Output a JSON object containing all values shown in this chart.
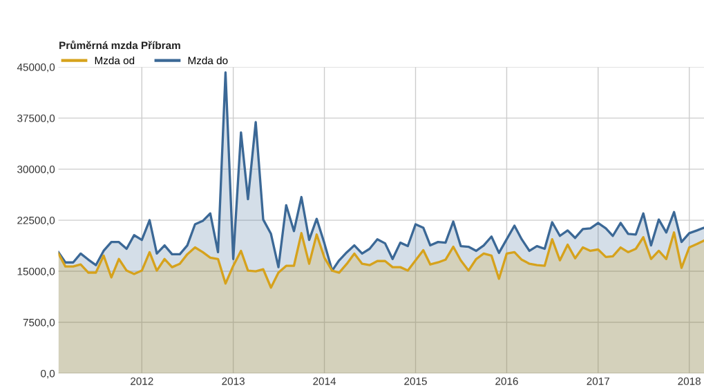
{
  "chart_data": {
    "type": "area",
    "title": "Průměrná mzda Příbram",
    "x": [
      "2011-02",
      "2011-03",
      "2011-04",
      "2011-05",
      "2011-06",
      "2011-07",
      "2011-08",
      "2011-09",
      "2011-10",
      "2011-11",
      "2011-12",
      "2012-01",
      "2012-02",
      "2012-03",
      "2012-04",
      "2012-05",
      "2012-06",
      "2012-07",
      "2012-08",
      "2012-09",
      "2012-10",
      "2012-11",
      "2012-12",
      "2013-01",
      "2013-02",
      "2013-03",
      "2013-04",
      "2013-05",
      "2013-06",
      "2013-07",
      "2013-08",
      "2013-09",
      "2013-10",
      "2013-11",
      "2013-12",
      "2014-01",
      "2014-02",
      "2014-03",
      "2014-04",
      "2014-05",
      "2014-06",
      "2014-07",
      "2014-08",
      "2014-09",
      "2014-10",
      "2014-11",
      "2014-12",
      "2015-01",
      "2015-02",
      "2015-03",
      "2015-04",
      "2015-05",
      "2015-06",
      "2015-07",
      "2015-08",
      "2015-09",
      "2015-10",
      "2015-11",
      "2015-12",
      "2016-01",
      "2016-02",
      "2016-03",
      "2016-04",
      "2016-05",
      "2016-06",
      "2016-07",
      "2016-08",
      "2016-09",
      "2016-10",
      "2016-11",
      "2016-12",
      "2017-01",
      "2017-02",
      "2017-03",
      "2017-04",
      "2017-05",
      "2017-06",
      "2017-07",
      "2017-08",
      "2017-09",
      "2017-10",
      "2017-11",
      "2017-12",
      "2018-01",
      "2018-02",
      "2018-03"
    ],
    "series": [
      {
        "name": "Mzda od",
        "color": "#d6a21c",
        "values": [
          17600,
          15700,
          15700,
          16000,
          14800,
          14800,
          17300,
          14100,
          16800,
          15100,
          14600,
          15100,
          17800,
          15100,
          16800,
          15600,
          16100,
          17500,
          18500,
          17800,
          17000,
          16800,
          13200,
          15800,
          18000,
          15100,
          15000,
          15300,
          12600,
          14800,
          15800,
          15800,
          20600,
          16100,
          20400,
          17000,
          15100,
          14800,
          16100,
          17600,
          16100,
          15900,
          16500,
          16500,
          15600,
          15600,
          15100,
          16600,
          18100,
          16000,
          16300,
          16700,
          18600,
          16600,
          15100,
          16800,
          17600,
          17300,
          13900,
          17600,
          17800,
          16700,
          16100,
          15900,
          15800,
          19700,
          16600,
          18900,
          16900,
          18500,
          18000,
          18200,
          17100,
          17200,
          18500,
          17800,
          18300,
          20000,
          16800,
          18000,
          16800,
          20700,
          15500,
          18500,
          19000,
          19500
        ]
      },
      {
        "name": "Mzda do",
        "color": "#3b6896",
        "values": [
          17800,
          16300,
          16300,
          17600,
          16700,
          15900,
          18000,
          19300,
          19300,
          18300,
          20300,
          19600,
          22500,
          17600,
          18800,
          17500,
          17500,
          18800,
          21900,
          22400,
          23500,
          17800,
          44200,
          16800,
          35400,
          25600,
          36900,
          22600,
          20500,
          15600,
          24700,
          20900,
          25900,
          19600,
          22700,
          19100,
          15100,
          16600,
          17800,
          18800,
          17600,
          18300,
          19700,
          19100,
          16800,
          19200,
          18700,
          21900,
          21400,
          18800,
          19300,
          19200,
          22300,
          18700,
          18600,
          18000,
          18800,
          20100,
          17700,
          19700,
          21700,
          19700,
          18000,
          18700,
          18300,
          22200,
          20200,
          21000,
          19900,
          21200,
          21300,
          22100,
          21300,
          20200,
          22100,
          20500,
          20400,
          23500,
          18800,
          22600,
          20700,
          23700,
          19300,
          20600,
          21000,
          21400
        ]
      }
    ],
    "xlim": [
      "2011-02",
      "2018-03"
    ],
    "xticks": [
      {
        "value": "2012",
        "label": "2012"
      },
      {
        "value": "2013",
        "label": "2013"
      },
      {
        "value": "2014",
        "label": "2014"
      },
      {
        "value": "2015",
        "label": "2015"
      },
      {
        "value": "2016",
        "label": "2016"
      },
      {
        "value": "2017",
        "label": "2017"
      },
      {
        "value": "2018",
        "label": "2018"
      }
    ],
    "ylim": [
      0,
      45000
    ],
    "yticks": [
      {
        "value": 0,
        "label": "0,0"
      },
      {
        "value": 7500,
        "label": "7500,0"
      },
      {
        "value": 15000,
        "label": "15000,0"
      },
      {
        "value": 22500,
        "label": "22500,0"
      },
      {
        "value": 30000,
        "label": "30000,0"
      },
      {
        "value": 37500,
        "label": "37500,0"
      },
      {
        "value": 45000,
        "label": "45000,0"
      }
    ],
    "grid": true,
    "legend": "top left"
  }
}
